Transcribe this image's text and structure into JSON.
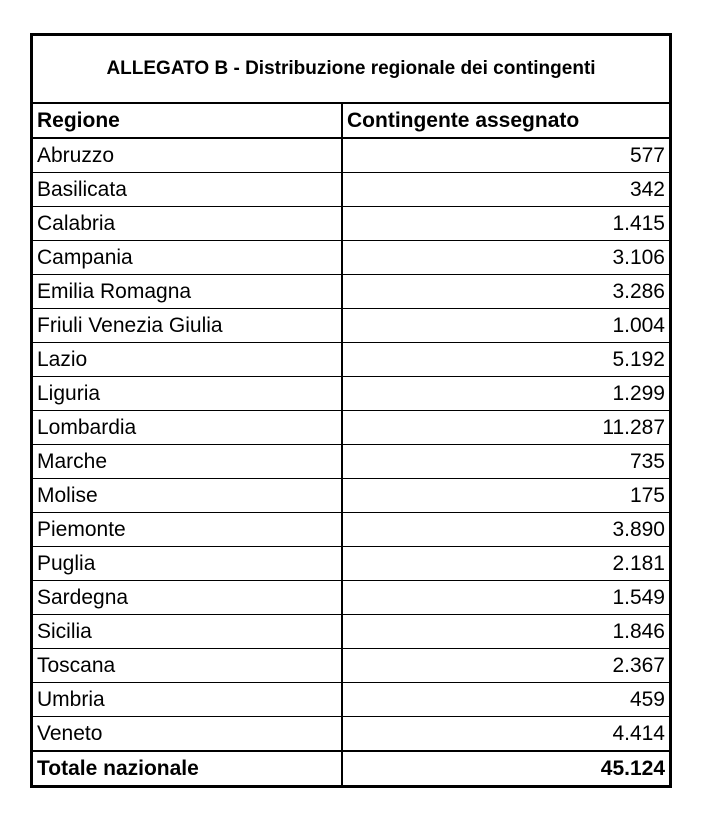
{
  "document": {
    "title": "ALLEGATO B - Distribuzione regionale dei contingenti",
    "headers": {
      "region": "Regione",
      "value": "Contingente assegnato"
    },
    "rows": [
      {
        "region": "Abruzzo",
        "value": "577"
      },
      {
        "region": "Basilicata",
        "value": "342"
      },
      {
        "region": "Calabria",
        "value": "1.415"
      },
      {
        "region": "Campania",
        "value": "3.106"
      },
      {
        "region": "Emilia Romagna",
        "value": "3.286"
      },
      {
        "region": "Friuli Venezia Giulia",
        "value": "1.004"
      },
      {
        "region": "Lazio",
        "value": "5.192"
      },
      {
        "region": "Liguria",
        "value": "1.299"
      },
      {
        "region": "Lombardia",
        "value": "11.287"
      },
      {
        "region": "Marche",
        "value": "735"
      },
      {
        "region": "Molise",
        "value": "175"
      },
      {
        "region": "Piemonte",
        "value": "3.890"
      },
      {
        "region": "Puglia",
        "value": "2.181"
      },
      {
        "region": "Sardegna",
        "value": "1.549"
      },
      {
        "region": "Sicilia",
        "value": "1.846"
      },
      {
        "region": "Toscana",
        "value": "2.367"
      },
      {
        "region": "Umbria",
        "value": "459"
      },
      {
        "region": "Veneto",
        "value": "4.414"
      }
    ],
    "total": {
      "region": "Totale nazionale",
      "value": "45.124"
    }
  }
}
